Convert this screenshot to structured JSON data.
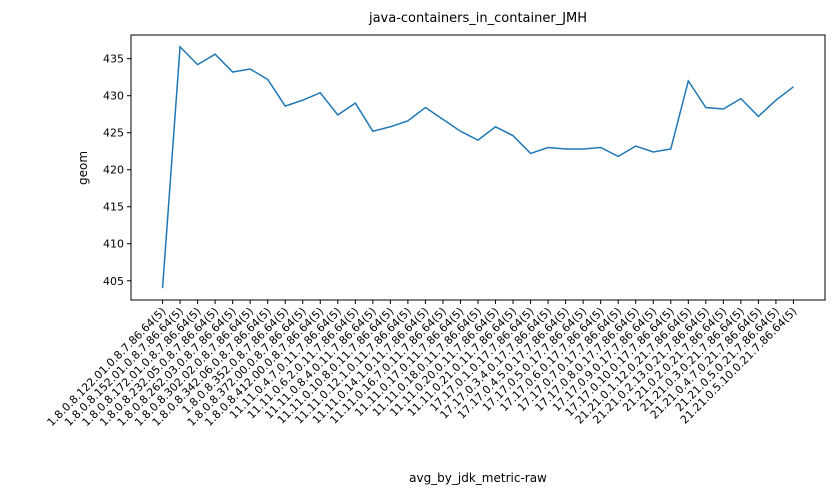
{
  "chart_data": {
    "type": "line",
    "title": "java-containers_in_container_JMH",
    "x_label": "avg_by_jdk_metric-raw",
    "y_label": "geom",
    "categories": [
      "1.8.0.8.122.01.0.8.7.86.64(5)",
      "1.8.0.8.152.01.0.8.7.86.64(5)",
      "1.8.0.8.172.01.0.8.7.86.64(5)",
      "1.8.0.8.232.05.0.8.7.86.64(5)",
      "1.8.0.8.262.03.0.8.7.86.64(5)",
      "1.8.0.8.302.02.0.8.7.86.64(5)",
      "1.8.0.8.342.06.0.8.7.86.64(5)",
      "1.8.0.8.352.0.8.7.86.64(5)",
      "1.8.0.8.372.00.0.8.7.86.64(5)",
      "1.8.0.8.412.00.0.8.7.86.64(5)",
      "11.11.0.4.7.0.11.7.86.64(5)",
      "11.11.0.6.2.0.11.7.86.64(5)",
      "11.11.0.8.4.0.11.7.86.64(5)",
      "11.11.0.10.8.0.11.7.86.64(5)",
      "11.11.0.12.1.0.11.7.86.64(5)",
      "11.11.0.14.1.0.11.7.86.64(5)",
      "11.11.0.16.7.0.11.7.86.64(5)",
      "11.11.0.17.0.11.7.86.64(5)",
      "11.11.0.18.0.11.7.86.64(5)",
      "11.11.0.20.0.11.7.86.64(5)",
      "11.11.0.21.0.11.7.86.64(5)",
      "17.17.0.1.0.17.7.86.64(5)",
      "17.17.0.3.4.0.17.7.86.64(5)",
      "17.17.0.4.5.0.17.7.86.64(5)",
      "17.17.0.5.0.17.7.86.64(5)",
      "17.17.0.6.0.17.7.86.64(5)",
      "17.17.0.7.0.17.7.86.64(5)",
      "17.17.0.8.0.17.7.86.64(5)",
      "17.17.0.9.0.17.7.86.64(5)",
      "17.17.0.10.0.17.7.86.64(5)",
      "21.21.0.1.12.0.21.7.86.64(5)",
      "21.21.0.2.13.0.21.7.86.64(5)",
      "21.21.0.2.0.21.7.86.64(5)",
      "21.21.0.3.0.21.7.86.64(5)",
      "21.21.0.4.7.0.21.7.86.64(5)",
      "21.21.0.5.0.21.7.86.64(5)",
      "21.21.0.5.10.0.21.7.86.64(5)"
    ],
    "series": [
      {
        "name": "geom",
        "color": "#1f77b4",
        "values": [
          404,
          436.6,
          434.2,
          435.6,
          433.2,
          433.6,
          432.2,
          428.6,
          429.4,
          430.4,
          427.4,
          429,
          425.2,
          425.8,
          426.6,
          428.4,
          426.8,
          425.2,
          424,
          425.8,
          424.6,
          422.2,
          423,
          422.8,
          422.8,
          423,
          421.8,
          423.2,
          422.4,
          422.8,
          432,
          428.4,
          428.2,
          429.6,
          427.2,
          429.4,
          431.2
        ]
      }
    ],
    "ylim": [
      402.4,
      438.2
    ],
    "yticks": [
      405,
      410,
      415,
      420,
      425,
      430,
      435
    ]
  }
}
